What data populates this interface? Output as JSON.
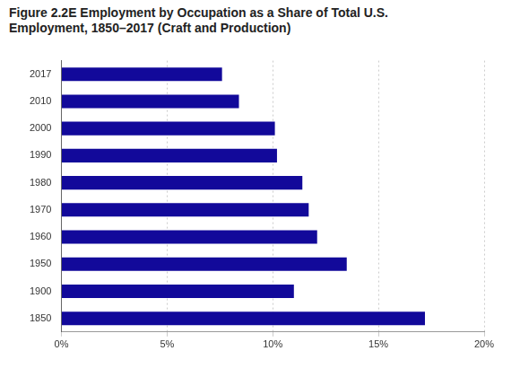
{
  "chart_data": {
    "type": "bar",
    "title": "Figure 2.2E Employment by Occupation as a Share of Total U.S. Employment, 1850–2017 (Craft and Production)",
    "orientation": "horizontal",
    "categories": [
      "2017",
      "2010",
      "2000",
      "1990",
      "1980",
      "1970",
      "1960",
      "1950",
      "1900",
      "1850"
    ],
    "values": [
      7.6,
      8.4,
      10.1,
      10.2,
      11.4,
      11.7,
      12.1,
      13.5,
      11.0,
      17.2
    ],
    "color": "#12099a",
    "xlim": [
      0,
      20
    ],
    "xticks": [
      {
        "value": 0,
        "label": "0%"
      },
      {
        "value": 5,
        "label": "5%"
      },
      {
        "value": 10,
        "label": "10%"
      },
      {
        "value": 15,
        "label": "15%"
      },
      {
        "value": 20,
        "label": "20%"
      }
    ],
    "grid": true
  }
}
